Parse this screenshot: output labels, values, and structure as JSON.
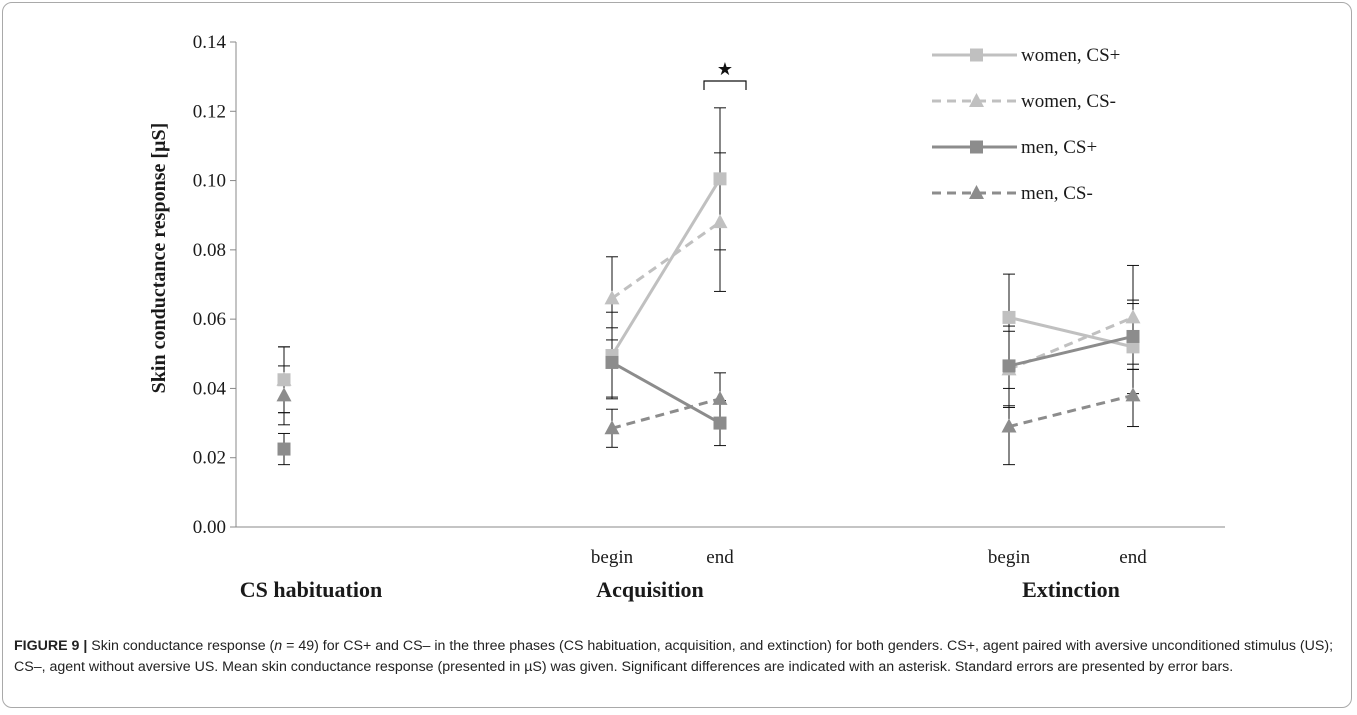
{
  "chart_data": {
    "type": "line",
    "ylabel": "Skin conductance response [µS]",
    "ylim": [
      0,
      0.14
    ],
    "yticks": [
      0,
      0.02,
      0.04,
      0.06,
      0.08,
      0.1,
      0.12,
      0.14
    ],
    "ytick_labels": [
      "0.00",
      "0.02",
      "0.04",
      "0.06",
      "0.08",
      "0.10",
      "0.12",
      "0.14"
    ],
    "grid": false,
    "legend_position": "top-right",
    "categories": [
      {
        "group": "CS habituation",
        "label": ""
      },
      {
        "group": "Acquisition",
        "label": "begin"
      },
      {
        "group": "Acquisition",
        "label": "end"
      },
      {
        "group": "Extinction",
        "label": "begin"
      },
      {
        "group": "Extinction",
        "label": "end"
      }
    ],
    "groups": [
      "CS habituation",
      "Acquisition",
      "Extinction"
    ],
    "series": [
      {
        "name": "women, CS+",
        "color": "#c0c0c0",
        "dash": false,
        "marker": "square",
        "values": [
          0.0425,
          0.0495,
          0.1005,
          0.0605,
          0.052
        ],
        "errors": [
          0.0095,
          0.0125,
          0.0205,
          0.0125,
          0.0135
        ]
      },
      {
        "name": "women, CS-",
        "color": "#c0c0c0",
        "dash": true,
        "marker": "triangle",
        "values": [
          0.0425,
          0.066,
          0.088,
          0.0455,
          0.0605
        ],
        "errors": [
          0.0095,
          0.012,
          0.02,
          0.011,
          0.015
        ]
      },
      {
        "name": "men, CS+",
        "color": "#8c8c8c",
        "dash": false,
        "marker": "square",
        "values": [
          0.0225,
          0.0475,
          0.03,
          0.0465,
          0.055
        ],
        "errors": [
          0.0045,
          0.01,
          0.0065,
          0.0115,
          0.0095
        ]
      },
      {
        "name": "men, CS-",
        "color": "#8c8c8c",
        "dash": true,
        "marker": "triangle",
        "values": [
          0.038,
          0.0285,
          0.037,
          0.029,
          0.038
        ],
        "errors": [
          0.0085,
          0.0055,
          0.0075,
          0.011,
          0.009
        ]
      }
    ],
    "significance": [
      {
        "category_index": 2,
        "label": "★"
      }
    ]
  },
  "caption": {
    "figure_label": "FIGURE 9 |",
    "text_1": " Skin conductance response (",
    "n_symbol": "n",
    "text_2": " = 49) for CS+ and CS– in the three phases (CS habituation, acquisition, and extinction) for both genders. CS+, agent paired with aversive unconditioned stimulus (US); CS–, agent without aversive US. Mean skin conductance response (presented in µS) was given. Significant differences are indicated with an asterisk. Standard errors are presented by error bars."
  }
}
